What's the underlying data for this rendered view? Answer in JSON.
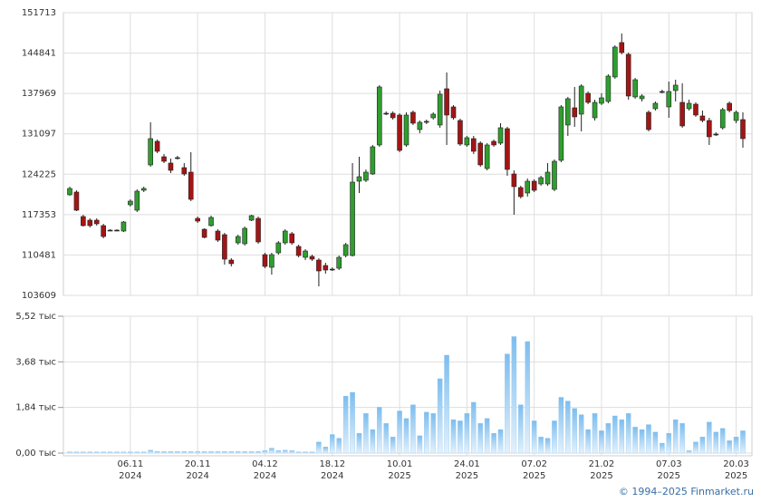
{
  "chart_data": [
    {
      "type": "candlestick",
      "open": [
        120725,
        121188,
        117024,
        116407,
        116407,
        115482,
        114711,
        114711,
        114557,
        119029,
        118104,
        121496,
        125814,
        129823,
        127201,
        126122,
        127047,
        125351,
        124580,
        116716,
        114865,
        115482,
        114557,
        113940,
        109623,
        112552,
        112398,
        116407,
        116716,
        110548,
        108389,
        110856,
        112552,
        114094,
        111936,
        110085,
        110239,
        109623,
        108697,
        108081,
        108235,
        110394,
        110394,
        123038,
        123192,
        124272,
        129206,
        134603,
        134603,
        134295,
        129206,
        134757,
        131827,
        133215,
        133832,
        132598,
        138766,
        135682,
        133369,
        129206,
        130285,
        129514,
        125197,
        129823,
        129514,
        131982,
        124272,
        121959,
        121033,
        123038,
        122575,
        122575,
        121650,
        126585,
        132598,
        135528,
        134449,
        137995,
        133832,
        136299,
        136608,
        140771,
        146631,
        144626,
        137379,
        137070,
        134757,
        135374,
        138304,
        135682,
        138458,
        136453,
        135374,
        136145,
        134140,
        133369,
        131056,
        132136,
        136299,
        133369,
        133524
      ],
      "high": [
        122113,
        121496,
        117333,
        116716,
        116716,
        115791,
        114865,
        114865,
        116253,
        119954,
        121650,
        122113,
        133061,
        130131,
        127664,
        126893,
        127356,
        126122,
        127972,
        117024,
        115020,
        117178,
        114865,
        114249,
        109931,
        113940,
        115328,
        117333,
        117024,
        110856,
        110856,
        112861,
        114865,
        114403,
        112244,
        111473,
        110548,
        109931,
        109160,
        108389,
        110394,
        112552,
        126122,
        127201,
        125043,
        129206,
        139383,
        134911,
        134911,
        134603,
        134757,
        135066,
        133369,
        133524,
        134757,
        138458,
        141542,
        135991,
        133678,
        130748,
        130748,
        129823,
        129514,
        130131,
        132907,
        132290,
        124888,
        122267,
        123501,
        123346,
        123963,
        126122,
        126739,
        135991,
        137379,
        139075,
        139537,
        138304,
        136916,
        137995,
        141234,
        146168,
        148173,
        144934,
        140617,
        137841,
        135066,
        136608,
        138612,
        140000,
        140308,
        139692,
        136916,
        136453,
        135066,
        133832,
        131365,
        135528,
        136608,
        135066,
        134757
      ],
      "low": [
        120571,
        117949,
        115328,
        115174,
        115482,
        113323,
        114557,
        114557,
        114403,
        118720,
        117795,
        121188,
        125505,
        127818,
        126122,
        124426,
        126739,
        123963,
        119646,
        115945,
        113323,
        115328,
        112707,
        108852,
        108543,
        112244,
        112090,
        116253,
        112398,
        108235,
        107155,
        110548,
        112244,
        112244,
        110085,
        109623,
        109468,
        105151,
        107310,
        107772,
        107926,
        110085,
        110239,
        121033,
        122884,
        124117,
        128898,
        134295,
        133524,
        127972,
        128898,
        132598,
        131211,
        132753,
        133524,
        132136,
        129206,
        133524,
        129052,
        128898,
        127664,
        125505,
        124888,
        128898,
        129206,
        123963,
        117333,
        120108,
        120417,
        121188,
        122267,
        122267,
        121342,
        126276,
        130748,
        132290,
        131519,
        136145,
        133369,
        135991,
        136299,
        140463,
        144626,
        136916,
        137070,
        136608,
        131519,
        135066,
        137995,
        133832,
        136608,
        132136,
        135066,
        133986,
        133061,
        129206,
        130748,
        131827,
        134757,
        132907,
        128743
      ],
      "close": [
        121804,
        118104,
        115482,
        115482,
        115791,
        113632,
        114711,
        114711,
        116099,
        119646,
        121342,
        121804,
        130285,
        128127,
        126430,
        124888,
        127047,
        124272,
        119954,
        116253,
        113478,
        116870,
        113015,
        109777,
        109006,
        113632,
        115020,
        117178,
        112707,
        108543,
        110548,
        112552,
        114557,
        112552,
        110394,
        111165,
        109777,
        107772,
        107926,
        108081,
        110085,
        112244,
        122884,
        123809,
        124580,
        128898,
        139075,
        134603,
        133832,
        128281,
        134295,
        132907,
        133061,
        133061,
        134449,
        137841,
        134295,
        133832,
        129360,
        130440,
        128127,
        125814,
        129206,
        129206,
        132136,
        125043,
        122113,
        120417,
        123038,
        121496,
        123655,
        124580,
        126430,
        135682,
        137070,
        133986,
        139229,
        136453,
        136453,
        137224,
        140925,
        145860,
        144934,
        137533,
        140308,
        137533,
        131827,
        136299,
        138304,
        138304,
        139383,
        132444,
        136299,
        134295,
        133369,
        130594,
        131056,
        135220,
        135066,
        134757,
        130285
      ],
      "up_color": "#2f9e2f",
      "down_color": "#a31515",
      "ylim": [
        103609,
        151713
      ],
      "yticks": [
        103609,
        110481,
        117353,
        124225,
        131097,
        137969,
        144841,
        151713
      ],
      "grid": true
    },
    {
      "type": "bar",
      "categories": [
        null,
        null,
        null,
        null,
        null,
        null,
        null,
        null,
        null,
        {
          "date": "06.11",
          "year": "2024"
        },
        null,
        null,
        null,
        null,
        null,
        null,
        null,
        null,
        null,
        {
          "date": "20.11",
          "year": "2024"
        },
        null,
        null,
        null,
        null,
        null,
        null,
        null,
        null,
        null,
        {
          "date": "04.12",
          "year": "2024"
        },
        null,
        null,
        null,
        null,
        null,
        null,
        null,
        null,
        null,
        {
          "date": "18.12",
          "year": "2024"
        },
        null,
        null,
        null,
        null,
        null,
        null,
        null,
        null,
        null,
        {
          "date": "10.01",
          "year": "2025"
        },
        null,
        null,
        null,
        null,
        null,
        null,
        null,
        null,
        null,
        {
          "date": "24.01",
          "year": "2025"
        },
        null,
        null,
        null,
        null,
        null,
        null,
        null,
        null,
        null,
        {
          "date": "07.02",
          "year": "2025"
        },
        null,
        null,
        null,
        null,
        null,
        null,
        null,
        null,
        null,
        {
          "date": "21.02",
          "year": "2025"
        },
        null,
        null,
        null,
        null,
        null,
        null,
        null,
        null,
        null,
        {
          "date": "07.03",
          "year": "2025"
        },
        null,
        null,
        null,
        null,
        null,
        null,
        null,
        null,
        null,
        {
          "date": "20.03",
          "year": "2025"
        },
        null
      ],
      "values": [
        0.05,
        0.05,
        0.05,
        0.05,
        0.05,
        0.05,
        0.05,
        0.05,
        0.05,
        0.05,
        0.05,
        0.05,
        0.12,
        0.07,
        0.06,
        0.06,
        0.06,
        0.06,
        0.06,
        0.06,
        0.06,
        0.06,
        0.06,
        0.06,
        0.06,
        0.06,
        0.06,
        0.06,
        0.06,
        0.1,
        0.2,
        0.1,
        0.12,
        0.1,
        0.05,
        0.05,
        0.05,
        0.45,
        0.25,
        0.75,
        0.6,
        2.3,
        2.45,
        0.8,
        1.6,
        0.95,
        1.85,
        1.2,
        0.65,
        1.7,
        1.4,
        1.95,
        0.7,
        1.65,
        1.6,
        3,
        3.95,
        1.35,
        1.3,
        1.6,
        2.05,
        1.2,
        1.4,
        0.8,
        0.95,
        4.0,
        4.7,
        1.95,
        4.5,
        1.3,
        0.65,
        0.6,
        1.3,
        2.25,
        2.1,
        1.8,
        1.55,
        0.95,
        1.6,
        0.9,
        1.2,
        1.5,
        1.35,
        1.6,
        1.05,
        0.95,
        1.15,
        0.85,
        0.4,
        0.8,
        1.35,
        1.2,
        0.1,
        0.45,
        0.65,
        1.25,
        0.85,
        1.0,
        0.5,
        0.65,
        0.9
      ],
      "color": "#8cc6f0",
      "ylim": [
        0,
        5.52
      ],
      "yticks": [
        {
          "value": 0,
          "label": "0,00 тыс"
        },
        {
          "value": 1.84,
          "label": "1,84 тыс"
        },
        {
          "value": 3.68,
          "label": "3,68 тыс"
        },
        {
          "value": 5.52,
          "label": "5,52 тыс"
        }
      ],
      "grid": true
    }
  ],
  "footer": "© 1994–2025 Finmarket.ru"
}
